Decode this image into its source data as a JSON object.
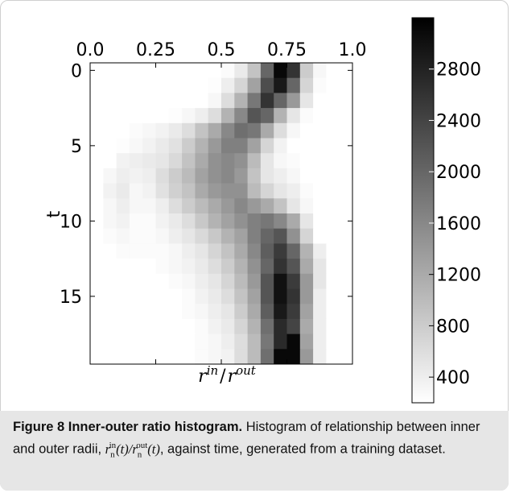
{
  "chart_data": {
    "type": "heatmap",
    "xlabel": "r^in / r^out",
    "xlabel_parts": {
      "num": "r",
      "num_sup": "in",
      "slash": "/",
      "den": "r",
      "den_sup": "out"
    },
    "ylabel": "t",
    "x_ticks": [
      "0.0",
      "0.25",
      "0.5",
      "0.75",
      "1.0"
    ],
    "x_tick_values": [
      0.0,
      0.25,
      0.5,
      0.75,
      1.0
    ],
    "y_ticks": [
      "0",
      "5",
      "10",
      "15"
    ],
    "y_tick_values": [
      0,
      5,
      10,
      15
    ],
    "xlim": [
      0.0,
      1.0
    ],
    "ylim": [
      0,
      19
    ],
    "colorbar_ticks": [
      "2800",
      "2400",
      "2000",
      "1600",
      "1200",
      "800",
      "400"
    ],
    "colorbar_tick_values": [
      2800,
      2400,
      2000,
      1600,
      1200,
      800,
      400
    ],
    "colorbar_range": [
      200,
      3200
    ],
    "colormap": "gray_r",
    "x_bin_edges": [
      0.0,
      0.05,
      0.1,
      0.15,
      0.2,
      0.25,
      0.3,
      0.35,
      0.4,
      0.45,
      0.5,
      0.55,
      0.6,
      0.65,
      0.7,
      0.75,
      0.8,
      0.85,
      0.9,
      0.95,
      1.0
    ],
    "t_values": [
      0,
      1,
      2,
      3,
      4,
      5,
      6,
      7,
      8,
      9,
      10,
      11,
      12,
      13,
      14,
      15,
      16,
      17,
      18,
      19
    ],
    "counts": [
      [
        0,
        0,
        0,
        0,
        0,
        0,
        0,
        0,
        0,
        0,
        250,
        450,
        900,
        2000,
        3100,
        2600,
        800,
        300,
        0,
        0
      ],
      [
        0,
        0,
        0,
        0,
        0,
        0,
        0,
        0,
        0,
        220,
        400,
        700,
        1300,
        2300,
        2900,
        2000,
        700,
        250,
        0,
        0
      ],
      [
        0,
        0,
        0,
        0,
        0,
        0,
        0,
        0,
        200,
        300,
        600,
        1100,
        1800,
        2600,
        2000,
        1400,
        500,
        0,
        0,
        0
      ],
      [
        0,
        0,
        0,
        0,
        0,
        0,
        220,
        300,
        400,
        600,
        1100,
        1600,
        2200,
        2000,
        1100,
        500,
        250,
        0,
        0,
        0
      ],
      [
        0,
        0,
        200,
        250,
        300,
        350,
        450,
        600,
        900,
        1200,
        1600,
        1900,
        1800,
        1200,
        600,
        300,
        0,
        0,
        0,
        0
      ],
      [
        0,
        0,
        220,
        280,
        350,
        450,
        550,
        800,
        1100,
        1400,
        1700,
        1700,
        1300,
        700,
        350,
        0,
        0,
        0,
        0,
        0
      ],
      [
        0,
        0,
        350,
        400,
        450,
        500,
        650,
        900,
        1200,
        1500,
        1600,
        1500,
        1000,
        500,
        300,
        250,
        0,
        0,
        0,
        0
      ],
      [
        0,
        300,
        400,
        350,
        400,
        600,
        800,
        1000,
        1300,
        1500,
        1600,
        1400,
        900,
        500,
        400,
        300,
        0,
        0,
        0,
        0
      ],
      [
        0,
        350,
        450,
        300,
        350,
        550,
        750,
        900,
        1200,
        1400,
        1500,
        1500,
        1000,
        700,
        500,
        400,
        250,
        0,
        0,
        0
      ],
      [
        0,
        300,
        400,
        300,
        300,
        400,
        600,
        800,
        1000,
        1200,
        1400,
        1600,
        1400,
        1200,
        900,
        500,
        300,
        0,
        0,
        0
      ],
      [
        0,
        300,
        350,
        250,
        250,
        350,
        450,
        600,
        850,
        1100,
        1300,
        1500,
        1700,
        1800,
        1600,
        1200,
        500,
        0,
        0,
        0
      ],
      [
        0,
        250,
        300,
        250,
        250,
        300,
        400,
        500,
        650,
        850,
        1100,
        1300,
        1700,
        2000,
        2200,
        1500,
        700,
        0,
        0,
        0
      ],
      [
        0,
        0,
        250,
        250,
        250,
        250,
        300,
        400,
        500,
        700,
        900,
        1200,
        1600,
        2100,
        2500,
        2000,
        1100,
        400,
        0,
        0
      ],
      [
        0,
        0,
        0,
        200,
        200,
        250,
        300,
        350,
        450,
        600,
        800,
        1100,
        1500,
        2000,
        2600,
        2200,
        1200,
        500,
        0,
        0
      ],
      [
        0,
        0,
        0,
        0,
        0,
        200,
        250,
        300,
        400,
        500,
        700,
        1000,
        1400,
        2200,
        3000,
        2500,
        1400,
        500,
        0,
        0
      ],
      [
        0,
        0,
        0,
        0,
        0,
        0,
        200,
        250,
        350,
        450,
        600,
        900,
        1300,
        2200,
        3000,
        2600,
        1400,
        400,
        0,
        0
      ],
      [
        0,
        0,
        0,
        0,
        0,
        0,
        0,
        250,
        300,
        400,
        500,
        800,
        1200,
        2100,
        2900,
        2500,
        1300,
        400,
        0,
        0
      ],
      [
        0,
        0,
        0,
        0,
        0,
        0,
        0,
        200,
        250,
        350,
        450,
        700,
        1100,
        1900,
        2700,
        2400,
        1200,
        400,
        0,
        0
      ],
      [
        0,
        0,
        0,
        0,
        0,
        0,
        0,
        0,
        250,
        300,
        400,
        600,
        1000,
        1800,
        2700,
        3100,
        1300,
        400,
        0,
        0
      ],
      [
        0,
        0,
        0,
        0,
        0,
        0,
        0,
        0,
        250,
        300,
        350,
        600,
        1000,
        1900,
        3100,
        3100,
        1400,
        400,
        0,
        0
      ]
    ]
  },
  "caption": {
    "figure_label": "Figure 8 Inner-outer ratio histogram.",
    "text_part1": " Histogram of relationship between inner and outer radii, ",
    "math": {
      "r1": "r",
      "r1_sub": "n",
      "r1_sup": "in",
      "t1": "(t)/",
      "r2": "r",
      "r2_sub": "n",
      "r2_sup": "out",
      "t2": "(t)"
    },
    "text_part2": ", against time, generated from a training dataset."
  }
}
